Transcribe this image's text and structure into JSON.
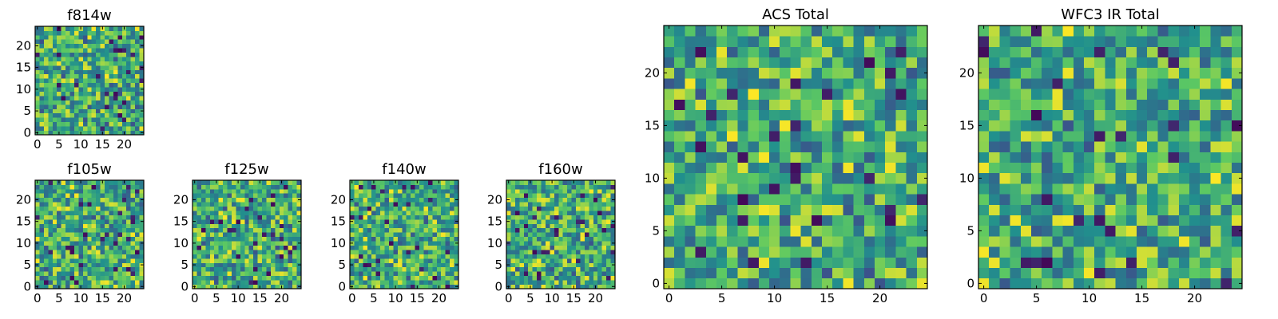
{
  "figure": {
    "description_title": "",
    "colormap": [
      "#440154",
      "#3b528b",
      "#21908d",
      "#5dc962",
      "#fde725"
    ]
  },
  "chart_data": [
    {
      "type": "heatmap",
      "title": "f814w",
      "grid_size": 25,
      "xlim": [
        -0.5,
        24.5
      ],
      "ylim": [
        -0.5,
        24.5
      ],
      "xticks": [
        0,
        5,
        10,
        15,
        20
      ],
      "yticks": [
        0,
        5,
        10,
        15,
        20
      ],
      "xlabel": "",
      "ylabel": "",
      "value_range": [
        0,
        1
      ],
      "seed": 11
    },
    {
      "type": "heatmap",
      "title": "f105w",
      "grid_size": 25,
      "xlim": [
        -0.5,
        24.5
      ],
      "ylim": [
        -0.5,
        24.5
      ],
      "xticks": [
        0,
        5,
        10,
        15,
        20
      ],
      "yticks": [
        0,
        5,
        10,
        15,
        20
      ],
      "xlabel": "",
      "ylabel": "",
      "value_range": [
        0,
        1
      ],
      "seed": 23
    },
    {
      "type": "heatmap",
      "title": "f125w",
      "grid_size": 25,
      "xlim": [
        -0.5,
        24.5
      ],
      "ylim": [
        -0.5,
        24.5
      ],
      "xticks": [
        0,
        5,
        10,
        15,
        20
      ],
      "yticks": [
        0,
        5,
        10,
        15,
        20
      ],
      "xlabel": "",
      "ylabel": "",
      "value_range": [
        0,
        1
      ],
      "seed": 37
    },
    {
      "type": "heatmap",
      "title": "f140w",
      "grid_size": 25,
      "xlim": [
        -0.5,
        24.5
      ],
      "ylim": [
        -0.5,
        24.5
      ],
      "xticks": [
        0,
        5,
        10,
        15,
        20
      ],
      "yticks": [
        0,
        5,
        10,
        15,
        20
      ],
      "xlabel": "",
      "ylabel": "",
      "value_range": [
        0,
        1
      ],
      "seed": 41
    },
    {
      "type": "heatmap",
      "title": "f160w",
      "grid_size": 25,
      "xlim": [
        -0.5,
        24.5
      ],
      "ylim": [
        -0.5,
        24.5
      ],
      "xticks": [
        0,
        5,
        10,
        15,
        20
      ],
      "yticks": [
        0,
        5,
        10,
        15,
        20
      ],
      "xlabel": "",
      "ylabel": "",
      "value_range": [
        0,
        1
      ],
      "seed": 53
    },
    {
      "type": "heatmap",
      "title": "ACS Total",
      "grid_size": 25,
      "xlim": [
        -0.5,
        24.5
      ],
      "ylim": [
        -0.5,
        24.5
      ],
      "xticks": [
        0,
        5,
        10,
        15,
        20
      ],
      "yticks": [
        0,
        5,
        10,
        15,
        20
      ],
      "xlabel": "",
      "ylabel": "",
      "value_range": [
        0,
        1
      ],
      "seed": 67
    },
    {
      "type": "heatmap",
      "title": "WFC3 IR Total",
      "grid_size": 25,
      "xlim": [
        -0.5,
        24.5
      ],
      "ylim": [
        -0.5,
        24.5
      ],
      "xticks": [
        0,
        5,
        10,
        15,
        20
      ],
      "yticks": [
        0,
        5,
        10,
        15,
        20
      ],
      "xlabel": "",
      "ylabel": "",
      "value_range": [
        0,
        1
      ],
      "seed": 79
    }
  ]
}
